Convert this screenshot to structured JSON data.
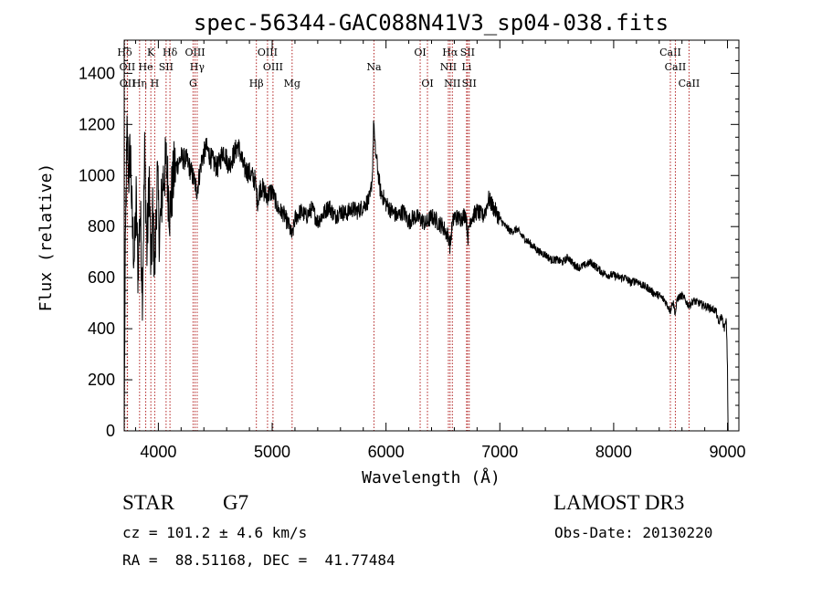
{
  "chart_data": {
    "type": "line",
    "title": "spec-56344-GAC088N41V3_sp04-038.fits",
    "xlabel": "Wavelength (Å)",
    "ylabel": "Flux (relative)",
    "xlim": [
      3700,
      9100
    ],
    "ylim": [
      0,
      1530
    ],
    "xticks": [
      4000,
      5000,
      6000,
      7000,
      8000,
      9000
    ],
    "yticks": [
      0,
      200,
      400,
      600,
      800,
      1000,
      1200,
      1400
    ],
    "grid": false,
    "line_color": "#000000",
    "marker_color": "#b22222",
    "spectrum_anchors": [
      [
        3700,
        0
      ],
      [
        3705,
        380
      ],
      [
        3715,
        900
      ],
      [
        3725,
        1150
      ],
      [
        3740,
        1000
      ],
      [
        3755,
        1110
      ],
      [
        3770,
        800
      ],
      [
        3790,
        680
      ],
      [
        3805,
        900
      ],
      [
        3820,
        640
      ],
      [
        3840,
        860
      ],
      [
        3860,
        560
      ],
      [
        3880,
        1080
      ],
      [
        3900,
        700
      ],
      [
        3920,
        1000
      ],
      [
        3935,
        600
      ],
      [
        3950,
        860
      ],
      [
        3968,
        620
      ],
      [
        3990,
        1000
      ],
      [
        4010,
        760
      ],
      [
        4040,
        980
      ],
      [
        4070,
        1050
      ],
      [
        4100,
        860
      ],
      [
        4140,
        1020
      ],
      [
        4200,
        1070
      ],
      [
        4250,
        1060
      ],
      [
        4300,
        1000
      ],
      [
        4340,
        940
      ],
      [
        4380,
        1060
      ],
      [
        4420,
        1110
      ],
      [
        4470,
        1060
      ],
      [
        4520,
        1030
      ],
      [
        4570,
        1100
      ],
      [
        4620,
        1040
      ],
      [
        4660,
        1080
      ],
      [
        4700,
        1120
      ],
      [
        4750,
        1030
      ],
      [
        4800,
        1010
      ],
      [
        4850,
        980
      ],
      [
        4870,
        900
      ],
      [
        4900,
        960
      ],
      [
        4950,
        920
      ],
      [
        5000,
        940
      ],
      [
        5050,
        870
      ],
      [
        5100,
        850
      ],
      [
        5150,
        800
      ],
      [
        5175,
        760
      ],
      [
        5200,
        830
      ],
      [
        5250,
        860
      ],
      [
        5300,
        840
      ],
      [
        5350,
        870
      ],
      [
        5400,
        820
      ],
      [
        5450,
        850
      ],
      [
        5500,
        880
      ],
      [
        5550,
        840
      ],
      [
        5600,
        860
      ],
      [
        5650,
        850
      ],
      [
        5700,
        870
      ],
      [
        5750,
        860
      ],
      [
        5800,
        880
      ],
      [
        5860,
        910
      ],
      [
        5880,
        1000
      ],
      [
        5893,
        1230
      ],
      [
        5900,
        1120
      ],
      [
        5920,
        1050
      ],
      [
        5950,
        940
      ],
      [
        6000,
        890
      ],
      [
        6050,
        860
      ],
      [
        6100,
        840
      ],
      [
        6150,
        860
      ],
      [
        6200,
        820
      ],
      [
        6250,
        840
      ],
      [
        6300,
        830
      ],
      [
        6350,
        810
      ],
      [
        6400,
        840
      ],
      [
        6450,
        820
      ],
      [
        6500,
        800
      ],
      [
        6550,
        760
      ],
      [
        6563,
        720
      ],
      [
        6580,
        800
      ],
      [
        6600,
        840
      ],
      [
        6650,
        830
      ],
      [
        6700,
        850
      ],
      [
        6720,
        760
      ],
      [
        6740,
        830
      ],
      [
        6800,
        860
      ],
      [
        6850,
        840
      ],
      [
        6880,
        870
      ],
      [
        6900,
        910
      ],
      [
        6950,
        870
      ],
      [
        7000,
        830
      ],
      [
        7050,
        800
      ],
      [
        7100,
        780
      ],
      [
        7150,
        790
      ],
      [
        7200,
        760
      ],
      [
        7250,
        740
      ],
      [
        7300,
        720
      ],
      [
        7350,
        700
      ],
      [
        7400,
        690
      ],
      [
        7450,
        670
      ],
      [
        7500,
        670
      ],
      [
        7550,
        660
      ],
      [
        7600,
        680
      ],
      [
        7650,
        650
      ],
      [
        7700,
        640
      ],
      [
        7750,
        650
      ],
      [
        7800,
        660
      ],
      [
        7850,
        640
      ],
      [
        7900,
        620
      ],
      [
        7950,
        610
      ],
      [
        8000,
        610
      ],
      [
        8050,
        600
      ],
      [
        8100,
        600
      ],
      [
        8150,
        580
      ],
      [
        8200,
        590
      ],
      [
        8250,
        570
      ],
      [
        8300,
        560
      ],
      [
        8350,
        540
      ],
      [
        8400,
        530
      ],
      [
        8450,
        510
      ],
      [
        8498,
        470
      ],
      [
        8520,
        510
      ],
      [
        8542,
        460
      ],
      [
        8560,
        520
      ],
      [
        8600,
        530
      ],
      [
        8662,
        490
      ],
      [
        8700,
        510
      ],
      [
        8750,
        500
      ],
      [
        8800,
        490
      ],
      [
        8850,
        480
      ],
      [
        8900,
        470
      ],
      [
        8920,
        420
      ],
      [
        8950,
        450
      ],
      [
        8970,
        400
      ],
      [
        8990,
        430
      ],
      [
        9000,
        250
      ],
      [
        9005,
        0
      ]
    ],
    "line_markers": [
      {
        "label": "Hδ",
        "wl": 3704,
        "row": 0
      },
      {
        "label": "OII",
        "wl": 3727,
        "row": 1
      },
      {
        "label": "OII",
        "wl": 3729,
        "row": 2
      },
      {
        "label": "Hη",
        "wl": 3835,
        "row": 2
      },
      {
        "label": "He",
        "wl": 3889,
        "row": 1
      },
      {
        "label": "K",
        "wl": 3934,
        "row": 0
      },
      {
        "label": "SII",
        "wl": 4068,
        "row": 1
      },
      {
        "label": "H",
        "wl": 3968,
        "row": 2
      },
      {
        "label": "Hδ",
        "wl": 4102,
        "row": 0
      },
      {
        "label": "OIII",
        "wl": 4322,
        "row": 0
      },
      {
        "label": "Hγ",
        "wl": 4341,
        "row": 1
      },
      {
        "label": "G",
        "wl": 4305,
        "row": 2
      },
      {
        "label": "Hβ",
        "wl": 4861,
        "row": 2
      },
      {
        "label": "OIII",
        "wl": 4959,
        "row": 0
      },
      {
        "label": "OIII",
        "wl": 5007,
        "row": 1
      },
      {
        "label": "Mg",
        "wl": 5175,
        "row": 2
      },
      {
        "label": "Na",
        "wl": 5894,
        "row": 1
      },
      {
        "label": "OI",
        "wl": 6300,
        "row": 0
      },
      {
        "label": "OI",
        "wl": 6364,
        "row": 2
      },
      {
        "label": "Hα",
        "wl": 6563,
        "row": 0
      },
      {
        "label": "NII",
        "wl": 6548,
        "row": 1
      },
      {
        "label": "NII",
        "wl": 6583,
        "row": 2
      },
      {
        "label": "SII",
        "wl": 6716,
        "row": 0
      },
      {
        "label": "Li",
        "wl": 6708,
        "row": 1
      },
      {
        "label": "SII",
        "wl": 6731,
        "row": 2
      },
      {
        "label": "CaII",
        "wl": 8498,
        "row": 0
      },
      {
        "label": "CaII",
        "wl": 8542,
        "row": 1
      },
      {
        "label": "CaII",
        "wl": 8662,
        "row": 2
      }
    ]
  },
  "footer": {
    "object_class": "STAR",
    "subclass": "G7",
    "survey": "LAMOST DR3",
    "redshift": "cz = 101.2 ± 4.6 km/s",
    "obs_date": "Obs-Date: 20130220",
    "coordinates": "RA =  88.51168, DEC =  41.77484"
  }
}
